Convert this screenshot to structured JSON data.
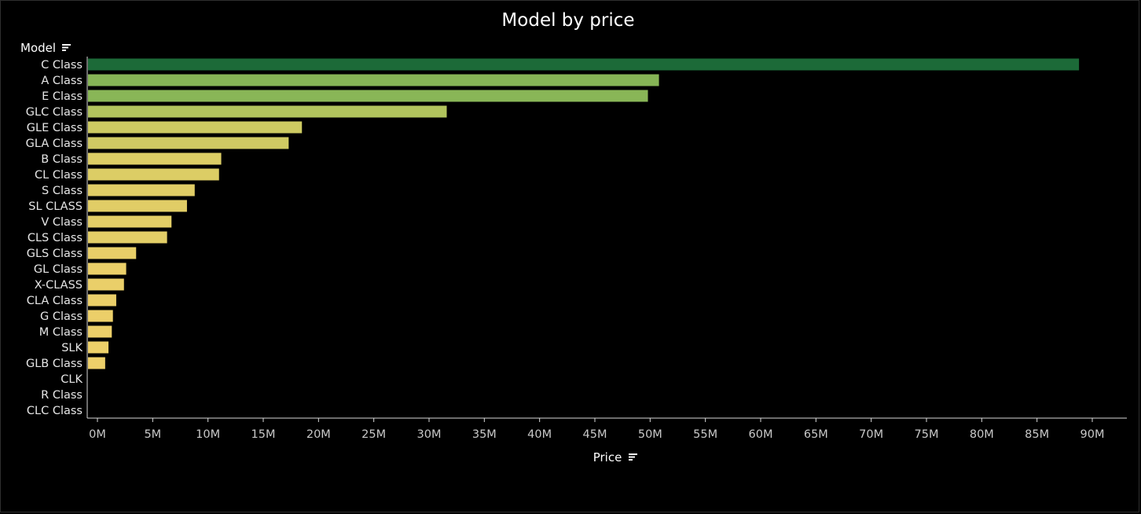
{
  "chart_data": {
    "type": "bar",
    "orientation": "horizontal",
    "title": "Model by price",
    "ylabel": "Model",
    "xlabel": "Price",
    "categories": [
      "C Class",
      "A Class",
      "E Class",
      "GLC Class",
      "GLE Class",
      "GLA Class",
      "B Class",
      "CL Class",
      "S Class",
      "SL CLASS",
      "V Class",
      "CLS Class",
      "GLS Class",
      "GL Class",
      "X-CLASS",
      "CLA Class",
      "G Class",
      "M Class",
      "SLK",
      "GLB Class",
      "CLK",
      "R Class",
      "CLC Class"
    ],
    "values": [
      88.8,
      50.8,
      49.8,
      31.6,
      18.5,
      17.3,
      11.2,
      11.0,
      8.8,
      8.1,
      6.7,
      6.3,
      3.5,
      2.6,
      2.4,
      1.7,
      1.4,
      1.3,
      1.0,
      0.7,
      0,
      0,
      0
    ],
    "xlim": [
      0,
      92
    ],
    "tick_values": [
      0,
      5,
      10,
      15,
      20,
      25,
      30,
      35,
      40,
      45,
      50,
      55,
      60,
      65,
      70,
      75,
      80,
      85,
      90
    ],
    "tick_labels": [
      "0M",
      "5M",
      "10M",
      "15M",
      "20M",
      "25M",
      "30M",
      "35M",
      "40M",
      "45M",
      "50M",
      "55M",
      "60M",
      "65M",
      "70M",
      "75M",
      "80M",
      "85M",
      "90M"
    ],
    "grid": false,
    "color_scale": [
      "#efd06a",
      "#d9cc64",
      "#b4c55e",
      "#8cb757",
      "#56a14f",
      "#1c6a38"
    ]
  },
  "icons": {
    "model_sort": "sort-icon",
    "price_sort": "sort-icon"
  },
  "colors": {
    "background": "#000000",
    "text": "#ffffff",
    "tick_text": "#c8c8c8",
    "axis": "#d9d9d9"
  }
}
